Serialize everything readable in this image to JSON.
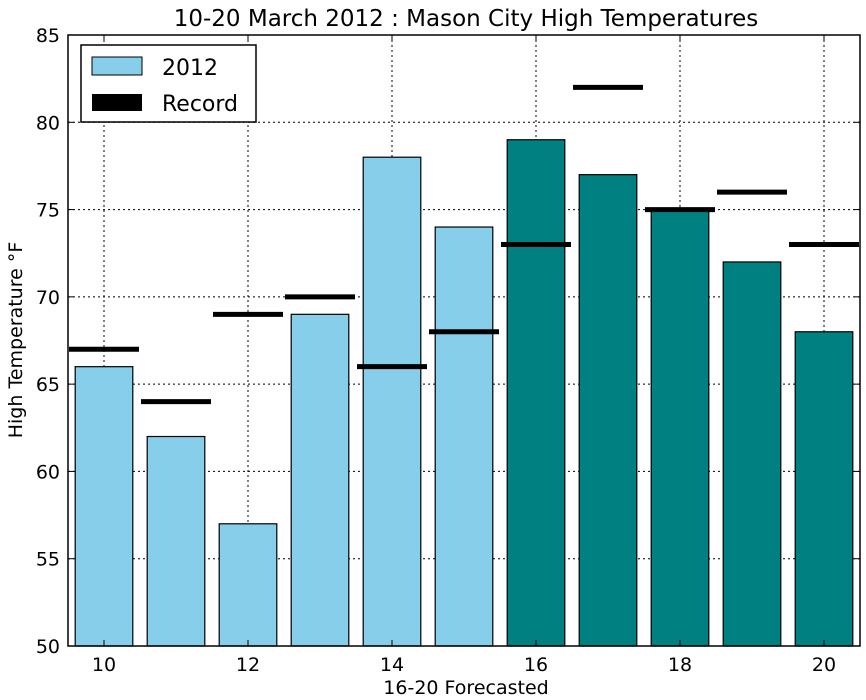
{
  "chart_data": {
    "type": "bar",
    "title": "10-20 March 2012 : Mason City High Temperatures",
    "xlabel": "16-20 Forecasted",
    "ylabel": "High Temperature °F",
    "x": [
      10,
      11,
      12,
      13,
      14,
      15,
      16,
      17,
      18,
      19,
      20
    ],
    "xticks": [
      "10",
      "12",
      "14",
      "16",
      "18",
      "20"
    ],
    "xtick_values": [
      10,
      12,
      14,
      16,
      18,
      20
    ],
    "yticks": [
      "50",
      "55",
      "60",
      "65",
      "70",
      "75",
      "80",
      "85"
    ],
    "ytick_values": [
      50,
      55,
      60,
      65,
      70,
      75,
      80,
      85
    ],
    "xlim": [
      9.5,
      20.5
    ],
    "ylim": [
      50,
      85
    ],
    "grid": true,
    "legend_position": "top-left",
    "series": [
      {
        "name": "2012",
        "kind": "bar",
        "values": [
          66,
          62,
          57,
          69,
          78,
          74,
          79,
          77,
          75,
          72,
          68
        ],
        "forecasted": [
          false,
          false,
          false,
          false,
          false,
          false,
          true,
          true,
          true,
          true,
          true
        ],
        "color": "#87ceeb",
        "forecast_color": "#008080"
      },
      {
        "name": "Record",
        "kind": "marker",
        "values": [
          67,
          64,
          69,
          70,
          66,
          68,
          73,
          82,
          75,
          76,
          73
        ],
        "color": "#000000"
      }
    ]
  }
}
